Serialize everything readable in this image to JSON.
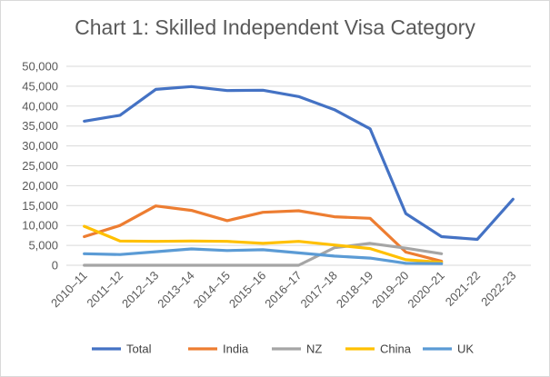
{
  "chart_data": {
    "type": "line",
    "title": "Chart 1: Skilled Independent Visa Category",
    "categories": [
      "2010–11",
      "2011–12",
      "2012–13",
      "2013–14",
      "2014–15",
      "2015–16",
      "2016–17",
      "2017–18",
      "2018–19",
      "2019–20",
      "2020–21",
      "2021-22",
      "2022-23"
    ],
    "ylim": [
      0,
      50000
    ],
    "ytick_labels": [
      "0",
      "5,000",
      "10,000",
      "15,000",
      "20,000",
      "25,000",
      "30,000",
      "35,000",
      "40,000",
      "45,000",
      "50,000"
    ],
    "ytick_values": [
      0,
      5000,
      10000,
      15000,
      20000,
      25000,
      30000,
      35000,
      40000,
      45000,
      50000
    ],
    "grid": true,
    "legend_position": "bottom",
    "series": [
      {
        "name": "Total",
        "color": "#4472C4",
        "values": [
          36200,
          37700,
          44200,
          44900,
          43900,
          44000,
          42400,
          39100,
          34300,
          13000,
          7200,
          6500,
          16600
        ]
      },
      {
        "name": "India",
        "color": "#ED7D31",
        "values": [
          7200,
          10000,
          14900,
          13800,
          11200,
          13300,
          13700,
          12200,
          11800,
          3300,
          1000,
          null,
          null
        ]
      },
      {
        "name": "NZ",
        "color": "#A5A5A5",
        "values": [
          0,
          0,
          0,
          0,
          0,
          0,
          0,
          4400,
          5500,
          4300,
          2900,
          null,
          null
        ]
      },
      {
        "name": "China",
        "color": "#FFC000",
        "values": [
          9800,
          6100,
          6000,
          6100,
          6000,
          5500,
          6000,
          5100,
          4200,
          1400,
          700,
          null,
          null
        ]
      },
      {
        "name": "UK",
        "color": "#5B9BD5",
        "values": [
          2900,
          2700,
          3400,
          4100,
          3700,
          3900,
          3100,
          2300,
          1800,
          500,
          400,
          null,
          null
        ]
      }
    ]
  }
}
